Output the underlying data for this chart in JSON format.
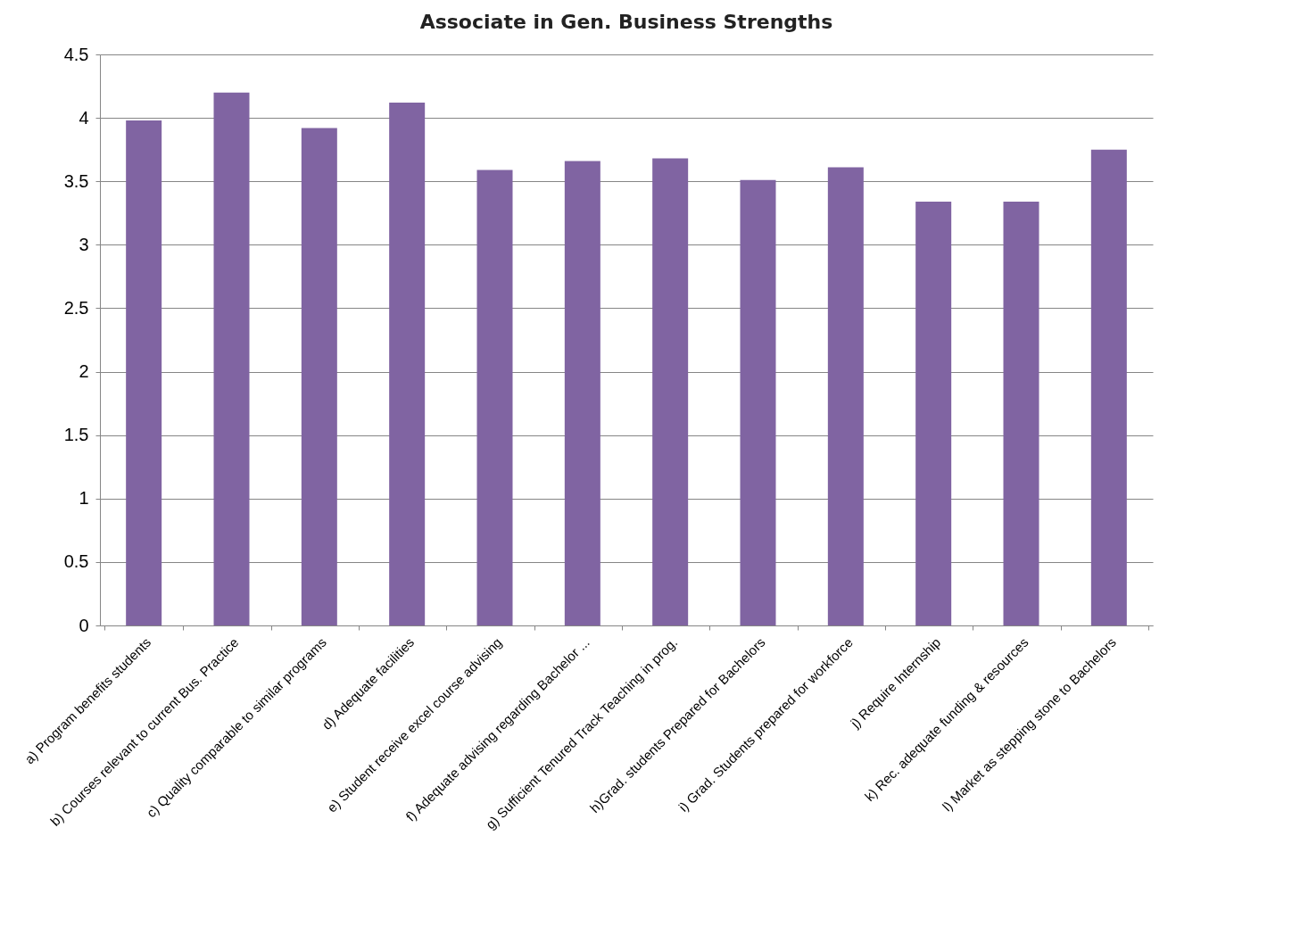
{
  "chart_data": {
    "type": "bar",
    "title": "Associate in Gen. Business Strengths",
    "categories": [
      "a) Program benefits students",
      "b) Courses relevant to current Bus. Practice",
      "c) Quality comparable to similar programs",
      "d) Adequate facilities",
      "e) Student receive excel course advising",
      "f) Adequate advising regarding Bachelor ...",
      "g) Sufficient Tenured Track Teaching in prog.",
      "h)Grad. students Prepared for Bachelors",
      "i) Grad. Students prepared for workforce",
      "j) Require Internship",
      "k) Rec. adequate funding & resources",
      "l) Market as stepping stone to Bachelors"
    ],
    "values": [
      3.98,
      4.2,
      3.92,
      4.12,
      3.59,
      3.66,
      3.68,
      3.51,
      3.61,
      3.34,
      3.34,
      3.75
    ],
    "color": "#8064a2",
    "ylim": [
      0,
      4.5
    ],
    "yticks": [
      0,
      0.5,
      1,
      1.5,
      2,
      2.5,
      3,
      3.5,
      4,
      4.5
    ],
    "grid": "y"
  }
}
